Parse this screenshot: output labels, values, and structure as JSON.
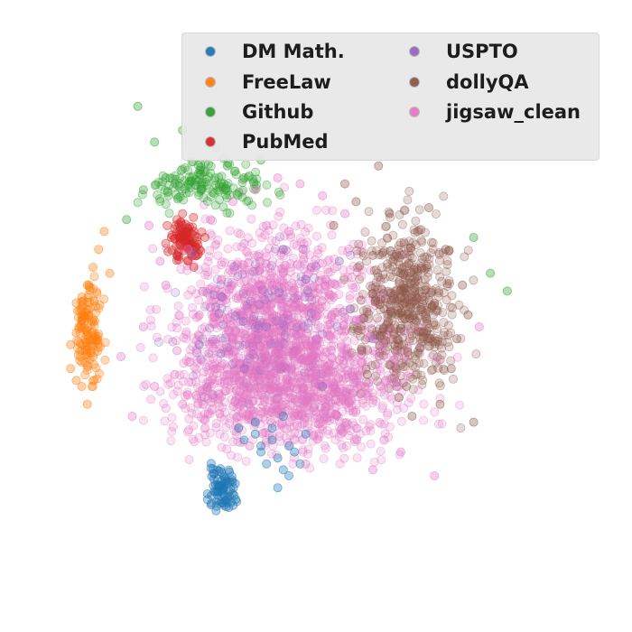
{
  "chart_data": {
    "type": "scatter",
    "title": "",
    "xlabel": "",
    "ylabel": "",
    "axes_visible": false,
    "grid": false,
    "legend": {
      "placement": "top-right",
      "columns": 2
    },
    "series": [
      {
        "name": "DM Math.",
        "color": "#1f77b4",
        "x": [
          -0.9,
          -0.6,
          -0.3,
          0.0,
          0.3,
          -0.5,
          -0.2,
          0.1,
          -0.8,
          -0.4,
          -0.1,
          0.2,
          -0.6,
          -0.3,
          0.0,
          -0.2,
          -0.5,
          -0.1
        ],
        "y": [
          -1.2,
          -1.3,
          -1.4,
          -1.5,
          -1.3,
          -1.6,
          -1.7,
          -1.6,
          -1.4,
          -1.8,
          -1.9,
          -1.8,
          -1.1,
          -1.2,
          -2.0,
          -2.2,
          -1.5,
          -1.0
        ]
      },
      {
        "name": "FreeLaw",
        "color": "#ff7f0e",
        "x": [
          -3.9,
          -3.7,
          -3.8,
          -3.6,
          -3.9,
          -3.5,
          -3.7,
          -3.8,
          -3.6,
          -3.4,
          -3.7,
          -3.3,
          -3.5,
          -3.8,
          -3.2
        ],
        "y": [
          0.2,
          0.6,
          0.9,
          1.2,
          -0.2,
          1.5,
          -0.5,
          0.4,
          -0.8,
          1.8,
          1.0,
          2.1,
          0.0,
          -0.4,
          1.4
        ]
      },
      {
        "name": "Github",
        "color": "#2ca02c",
        "x": [
          -2.6,
          -2.2,
          -1.8,
          -1.5,
          -1.1,
          -0.8,
          -0.5,
          -2.9,
          -2.4,
          -1.3,
          3.6,
          3.9,
          3.3,
          -2.7,
          -1.9
        ],
        "y": [
          2.8,
          3.0,
          2.9,
          3.1,
          3.2,
          3.0,
          3.3,
          2.3,
          3.6,
          3.5,
          1.4,
          1.1,
          2.0,
          4.2,
          3.8
        ]
      },
      {
        "name": "PubMed",
        "color": "#d62728",
        "x": [
          -2.1,
          -1.9,
          -1.8,
          -2.0,
          -1.7,
          -1.6,
          -1.9,
          -2.2,
          -1.8,
          -1.5,
          -2.0,
          -1.7
        ],
        "y": [
          2.0,
          2.2,
          1.9,
          1.7,
          2.1,
          1.8,
          2.4,
          1.9,
          1.6,
          2.0,
          2.3,
          1.5
        ]
      },
      {
        "name": "USPTO",
        "color": "#9467bd",
        "x": [
          -1.2,
          -0.4,
          0.3,
          1.1,
          -0.8,
          0.6,
          1.5,
          -1.6,
          -0.1,
          0.9
        ],
        "y": [
          1.0,
          0.5,
          1.3,
          0.8,
          -0.2,
          -0.5,
          0.3,
          0.2,
          1.8,
          1.6
        ]
      },
      {
        "name": "dollyQA",
        "color": "#8c564b",
        "x": [
          1.2,
          1.8,
          2.3,
          2.8,
          3.1,
          1.5,
          2.0,
          2.6,
          3.0,
          1.0,
          1.7,
          2.4,
          2.9,
          1.3,
          2.1,
          2.7,
          3.3,
          1.9,
          2.5,
          0.8,
          1.4,
          2.2,
          3.2,
          1.6
        ],
        "y": [
          2.6,
          2.4,
          2.1,
          1.8,
          1.2,
          1.7,
          1.4,
          0.9,
          0.3,
          2.9,
          0.8,
          0.4,
          -0.2,
          0.1,
          -0.5,
          -0.8,
          -1.1,
          1.1,
          2.5,
          2.2,
          -0.3,
          -1.0,
          0.7,
          3.2
        ]
      },
      {
        "name": "jigsaw_clean",
        "color": "#e377c2",
        "x": [
          -2.6,
          -2.2,
          -1.8,
          -1.4,
          -1.0,
          -0.6,
          -0.2,
          0.2,
          0.6,
          1.0,
          -2.4,
          -2.0,
          -1.6,
          -1.2,
          -0.8,
          -0.4,
          0.0,
          0.4,
          0.8,
          1.2,
          -2.8,
          -1.9,
          -1.1,
          -0.3,
          0.5,
          1.3,
          -2.3,
          -1.5,
          -0.7,
          0.1,
          0.9,
          1.7,
          -2.5,
          -1.3,
          0.3,
          1.5,
          -3.0,
          2.0,
          2.6,
          3.4
        ],
        "y": [
          0.5,
          1.2,
          1.8,
          2.3,
          2.6,
          2.8,
          3.0,
          2.9,
          2.7,
          2.4,
          -0.5,
          0.1,
          0.7,
          1.3,
          1.9,
          2.2,
          2.1,
          1.5,
          1.0,
          0.6,
          -1.0,
          -0.8,
          -0.3,
          0.4,
          0.2,
          -0.1,
          1.6,
          -1.2,
          -1.5,
          -1.0,
          -0.6,
          -1.4,
          2.2,
          -0.2,
          -1.8,
          -1.9,
          0.0,
          -1.6,
          -2.0,
          0.5
        ]
      }
    ]
  }
}
